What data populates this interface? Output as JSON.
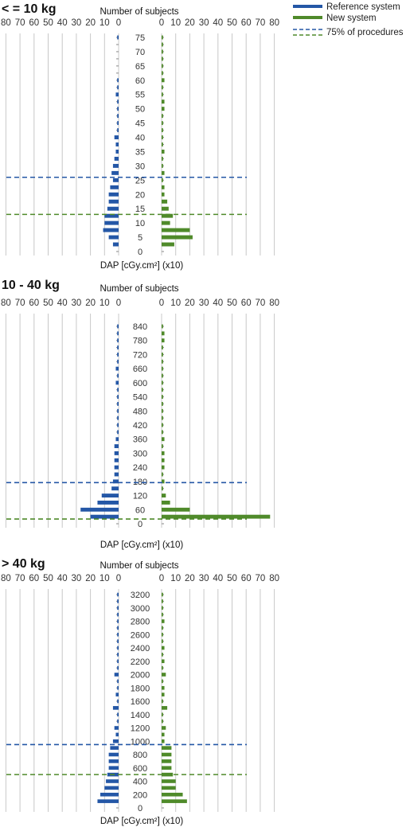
{
  "legend": {
    "reference": "Reference system",
    "new": "New system",
    "percentile": "75% of procedures"
  },
  "colors": {
    "reference": "#2457a6",
    "new": "#4f8a2a",
    "grid": "#c8c8c8"
  },
  "chart_data": [
    {
      "type": "bar",
      "orientation": "butterfly-horizontal",
      "title": "< = 10 kg",
      "top_label": "Number of subjects",
      "ylabel": "DAP [cGy.cm²] (x10)",
      "x_ticks_left": [
        "80",
        "70",
        "60",
        "50",
        "40",
        "30",
        "20",
        "10",
        "0"
      ],
      "x_ticks_right": [
        "0",
        "10",
        "20",
        "30",
        "40",
        "50",
        "60",
        "70",
        "80"
      ],
      "xlim": [
        0,
        80
      ],
      "ylim": [
        0,
        75
      ],
      "y_ticks": [
        "0",
        "5",
        "10",
        "15",
        "20",
        "25",
        "30",
        "35",
        "40",
        "45",
        "50",
        "55",
        "60",
        "65",
        "70",
        "75"
      ],
      "y_values": [
        2.5,
        5,
        7.5,
        10,
        12.5,
        15,
        17.5,
        20,
        22.5,
        25,
        27.5,
        30,
        32.5,
        35,
        37.5,
        40,
        42.5,
        45,
        47.5,
        50,
        52.5,
        55,
        57.5,
        60,
        62.5,
        65,
        67.5,
        70,
        72.5,
        75
      ],
      "reference": [
        4,
        7,
        11,
        10,
        10,
        8,
        7,
        7,
        6,
        4,
        5,
        4,
        3,
        2,
        2,
        3,
        1,
        1,
        1,
        1,
        1,
        2,
        1,
        1,
        0,
        0,
        0,
        0,
        0,
        1
      ],
      "new": [
        9,
        22,
        20,
        6,
        8,
        5,
        4,
        2,
        2,
        1,
        2,
        1,
        1,
        2,
        1,
        1,
        1,
        1,
        1,
        2,
        2,
        1,
        1,
        2,
        1,
        1,
        1,
        1,
        1,
        1
      ],
      "p75_reference": 26,
      "p75_new": 13
    },
    {
      "type": "bar",
      "orientation": "butterfly-horizontal",
      "title": "10 - 40 kg",
      "top_label": "Number of subjects",
      "ylabel": "DAP [cGy.cm²] (x10)",
      "x_ticks_left": [
        "80",
        "70",
        "60",
        "50",
        "40",
        "30",
        "20",
        "10",
        "0"
      ],
      "x_ticks_right": [
        "0",
        "10",
        "20",
        "30",
        "40",
        "50",
        "60",
        "70",
        "80"
      ],
      "xlim": [
        0,
        80
      ],
      "ylim": [
        0,
        840
      ],
      "y_ticks": [
        "0",
        "60",
        "120",
        "180",
        "240",
        "300",
        "360",
        "420",
        "480",
        "540",
        "600",
        "660",
        "720",
        "780",
        "840"
      ],
      "y_values": [
        30,
        60,
        90,
        120,
        150,
        180,
        210,
        240,
        270,
        300,
        330,
        360,
        390,
        420,
        450,
        480,
        510,
        540,
        570,
        600,
        630,
        660,
        690,
        720,
        750,
        780,
        810,
        840
      ],
      "reference": [
        20,
        27,
        15,
        12,
        5,
        4,
        3,
        3,
        3,
        3,
        3,
        2,
        1,
        1,
        1,
        1,
        1,
        1,
        1,
        2,
        1,
        2,
        1,
        1,
        1,
        1,
        1,
        1
      ],
      "new": [
        77,
        20,
        6,
        3,
        1,
        2,
        1,
        2,
        2,
        2,
        1,
        2,
        1,
        1,
        1,
        1,
        1,
        1,
        1,
        1,
        1,
        1,
        1,
        1,
        1,
        2,
        2,
        1
      ],
      "p75_reference": 175,
      "p75_new": 20
    },
    {
      "type": "bar",
      "orientation": "butterfly-horizontal",
      "title": "> 40 kg",
      "top_label": "Number of subjects",
      "ylabel": "DAP [cGy.cm²] (x10)",
      "x_ticks_left": [
        "80",
        "70",
        "60",
        "50",
        "40",
        "30",
        "20",
        "10",
        "0"
      ],
      "x_ticks_right": [
        "0",
        "10",
        "20",
        "30",
        "40",
        "50",
        "60",
        "70",
        "80"
      ],
      "xlim": [
        0,
        80
      ],
      "ylim": [
        0,
        3200
      ],
      "y_ticks": [
        "0",
        "200",
        "400",
        "600",
        "800",
        "1000",
        "1200",
        "1400",
        "1600",
        "1800",
        "2000",
        "2200",
        "2400",
        "2600",
        "2800",
        "3000",
        "3200"
      ],
      "y_values": [
        100,
        200,
        300,
        400,
        500,
        600,
        700,
        800,
        900,
        1000,
        1100,
        1200,
        1300,
        1400,
        1500,
        1600,
        1700,
        1800,
        1900,
        2000,
        2100,
        2200,
        2300,
        2400,
        2500,
        2600,
        2700,
        2800,
        2900,
        3000,
        3100,
        3200
      ],
      "reference": [
        15,
        13,
        10,
        9,
        8,
        7,
        7,
        7,
        6,
        4,
        2,
        3,
        1,
        1,
        4,
        1,
        2,
        1,
        1,
        3,
        1,
        1,
        1,
        1,
        1,
        1,
        1,
        1,
        1,
        1,
        1,
        1
      ],
      "new": [
        18,
        15,
        10,
        10,
        8,
        7,
        7,
        7,
        7,
        2,
        2,
        3,
        1,
        1,
        4,
        1,
        2,
        2,
        1,
        3,
        1,
        2,
        1,
        2,
        1,
        1,
        1,
        2,
        1,
        1,
        1,
        1
      ],
      "p75_reference": 950,
      "p75_new": 500
    }
  ]
}
